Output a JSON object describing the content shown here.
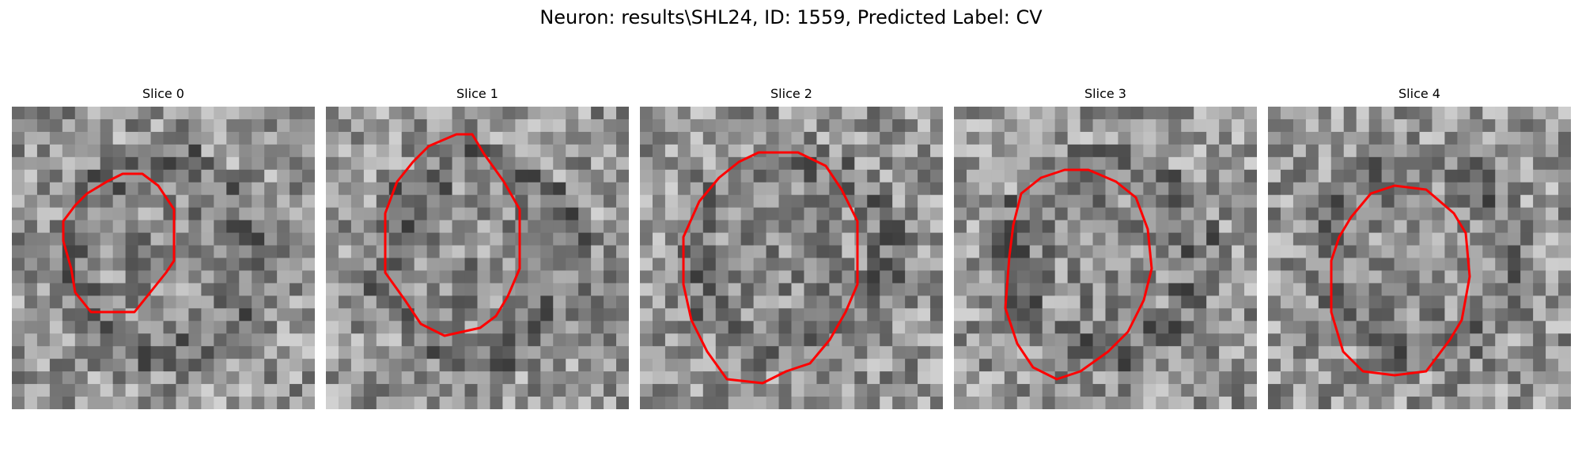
{
  "figure": {
    "title": "Neuron: results\\SHL24, ID: 1559, Predicted Label: CV"
  },
  "panels": [
    {
      "title": "Slice 0"
    },
    {
      "title": "Slice 1"
    },
    {
      "title": "Slice 2"
    },
    {
      "title": "Slice 3"
    },
    {
      "title": "Slice 4"
    }
  ],
  "colors": {
    "contour": "#ff0000",
    "background": "#ffffff"
  }
}
